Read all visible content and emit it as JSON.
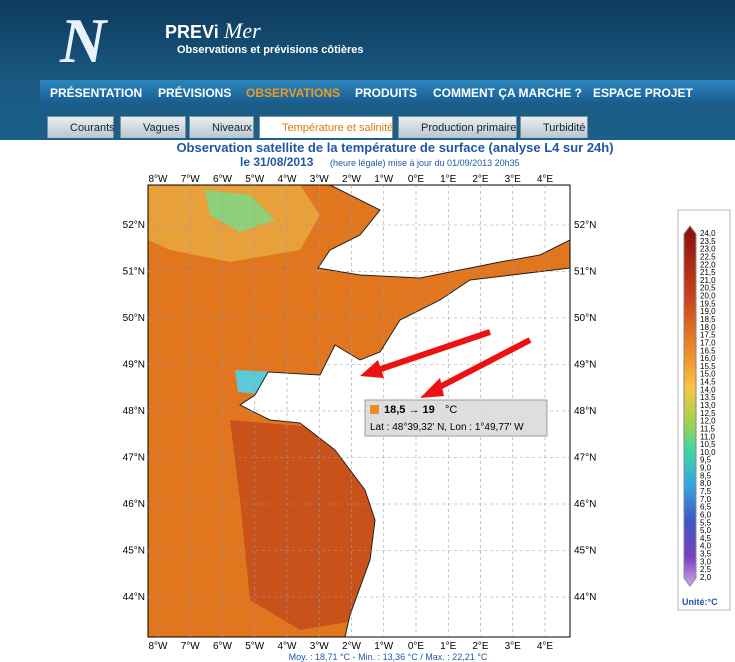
{
  "header": {
    "logo": "PREVi",
    "logo_script": "Mer",
    "tagline": "Observations et prévisions côtières"
  },
  "nav": {
    "items": [
      "PRÉSENTATION",
      "PRÉVISIONS",
      "OBSERVATIONS",
      "PRODUITS",
      "COMMENT ÇA MARCHE ?",
      "ESPACE PROJET"
    ],
    "active": 2
  },
  "tabs": {
    "items": [
      "Courants",
      "Vagues",
      "Niveaux",
      "Température et salinité",
      "Production primaire",
      "Turbidité"
    ],
    "active": 3
  },
  "map": {
    "title": "Observation satellite de la température de surface (analyse L4 sur 24h)",
    "date": "le 31/08/2013",
    "update": "(heure légale) mise à jour du 01/09/2013 20h35",
    "lon_labels": [
      "8°W",
      "7°W",
      "6°W",
      "5°W",
      "4°W",
      "3°W",
      "2°W",
      "1°W",
      "0°E",
      "1°E",
      "2°E",
      "3°E",
      "4°E"
    ],
    "lat_labels": [
      "52°N",
      "51°N",
      "50°N",
      "49°N",
      "48°N",
      "47°N",
      "46°N",
      "45°N",
      "44°N"
    ],
    "tooltip": {
      "value": "18,5 → 19",
      "unit": "°C",
      "position": "Lat : 48°39,32' N, Lon : 1°49,77' W"
    },
    "stats": "Moy. : 18,71 °C  -  Min. : 13,36 °C / Max. : 22,21 °C"
  },
  "legend": {
    "labels": [
      "24,0",
      "23,5",
      "23,0",
      "22,5",
      "22,0",
      "21,5",
      "21,0",
      "20,5",
      "20,0",
      "19,5",
      "19,0",
      "18,5",
      "18,0",
      "17,5",
      "17,0",
      "16,5",
      "16,0",
      "15,5",
      "15,0",
      "14,5",
      "14,0",
      "13,5",
      "13,0",
      "12,5",
      "12,0",
      "11,5",
      "11,0",
      "10,5",
      "10,0",
      "9,5",
      "9,0",
      "8,5",
      "8,0",
      "7,5",
      "7,0",
      "6,5",
      "6,0",
      "5,5",
      "5,0",
      "4,5",
      "4,0",
      "3,5",
      "3,0",
      "2,5",
      "2,0"
    ],
    "unit": "Unité:°C"
  }
}
